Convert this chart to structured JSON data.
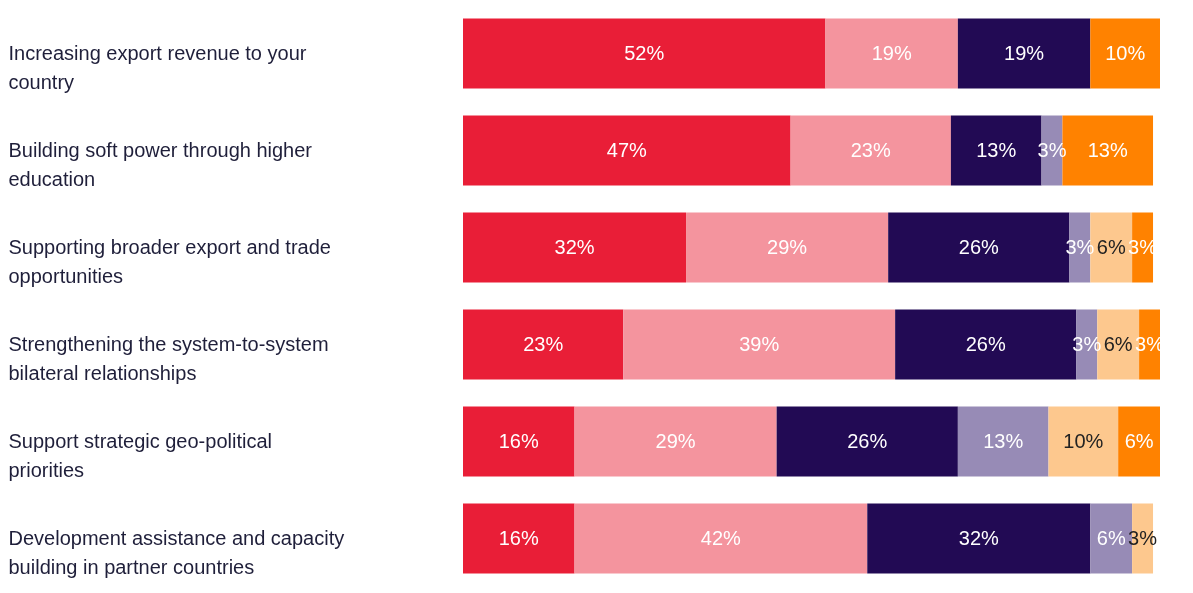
{
  "chart_data": {
    "type": "bar",
    "orientation": "horizontal",
    "stacked": true,
    "categories": [
      "Increasing export revenue to your country",
      "Building soft power through higher education",
      "Supporting broader export and trade opportunities",
      "Strengthening the system-to-system bilateral relationships",
      "Support strategic geo-political priorities",
      "Development assistance and capacity building in partner countries"
    ],
    "series": [
      {
        "color": "#e91e37",
        "values": [
          52,
          47,
          32,
          23,
          16,
          16
        ],
        "value_labels": [
          "52%",
          "47%",
          "32%",
          "23%",
          "16%",
          "16%"
        ]
      },
      {
        "color": "#f4949e",
        "values": [
          19,
          23,
          29,
          39,
          29,
          42
        ],
        "value_labels": [
          "19%",
          "23%",
          "29%",
          "39%",
          "29%",
          "42%"
        ]
      },
      {
        "color": "#220a54",
        "values": [
          19,
          13,
          26,
          26,
          26,
          32
        ],
        "value_labels": [
          "19%",
          "13%",
          "26%",
          "26%",
          "26%",
          "32%"
        ]
      },
      {
        "color": "#978bb6",
        "values": [
          null,
          3,
          3,
          3,
          13,
          6
        ],
        "value_labels": [
          null,
          "3%",
          "3%",
          "3%",
          "13%",
          "6%"
        ]
      },
      {
        "color": "#fdc88e",
        "values": [
          null,
          null,
          6,
          6,
          10,
          3
        ],
        "value_labels": [
          null,
          null,
          "6%",
          "6%",
          "10%",
          "3%"
        ]
      },
      {
        "color": "#ff8200",
        "values": [
          10,
          13,
          3,
          3,
          6,
          null
        ],
        "value_labels": [
          "10%",
          "13%",
          "3%",
          "3%",
          "6%",
          null
        ]
      }
    ],
    "xlim": [
      0,
      100
    ],
    "tick_labels": "y",
    "legend": false
  }
}
